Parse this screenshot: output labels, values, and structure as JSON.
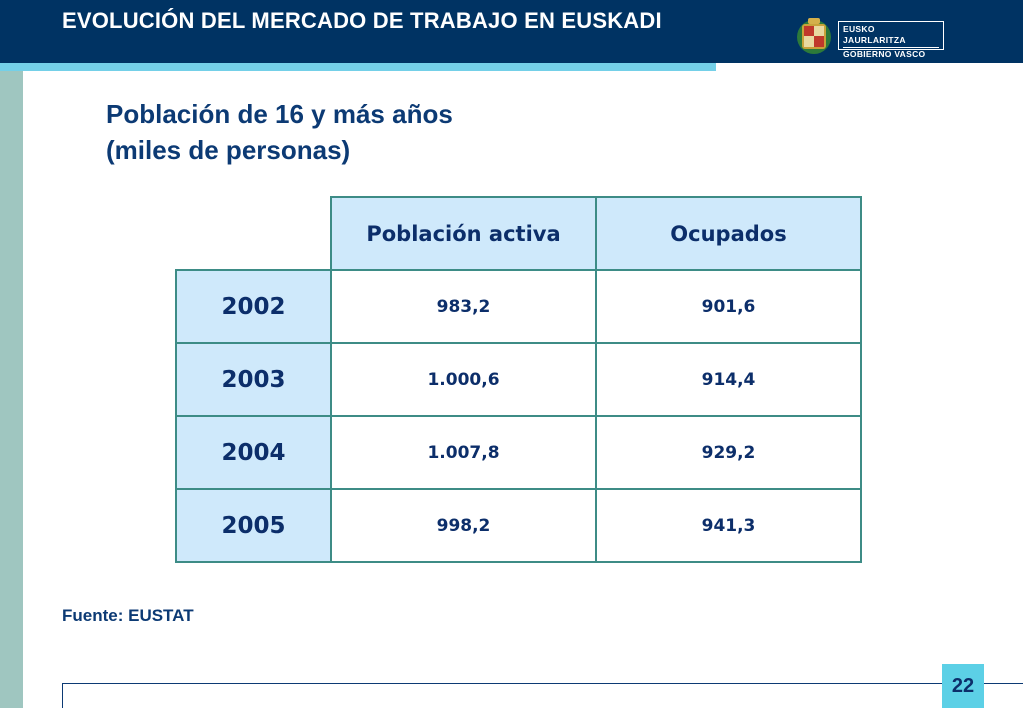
{
  "header": {
    "title": "EVOLUCIÓN DEL MERCADO DE TRABAJO EN EUSKADI",
    "logo_line1": "EUSKO JAURLARITZA",
    "logo_line2": "GOBIERNO VASCO"
  },
  "slide": {
    "title_line1": "Población de 16 y más años",
    "title_line2": "(miles de personas)"
  },
  "table": {
    "columns": [
      "Población activa",
      "Ocupados"
    ],
    "rows": [
      {
        "year": "2002",
        "activa": "983,2",
        "ocupados": "901,6"
      },
      {
        "year": "2003",
        "activa": "1.000,6",
        "ocupados": "914,4"
      },
      {
        "year": "2004",
        "activa": "1.007,8",
        "ocupados": "929,2"
      },
      {
        "year": "2005",
        "activa": "998,2",
        "ocupados": "941,3"
      }
    ]
  },
  "footer": {
    "source": "Fuente: EUSTAT",
    "page_number": "22"
  },
  "colors": {
    "header_bg": "#003363",
    "accent": "#74d0e8",
    "left_strip": "#9fc6c0",
    "table_header_bg": "#cfe9fb",
    "table_border": "#3d8c86",
    "text_dark_blue": "#0c3a74",
    "page_number_bg": "#5cd0e6"
  }
}
